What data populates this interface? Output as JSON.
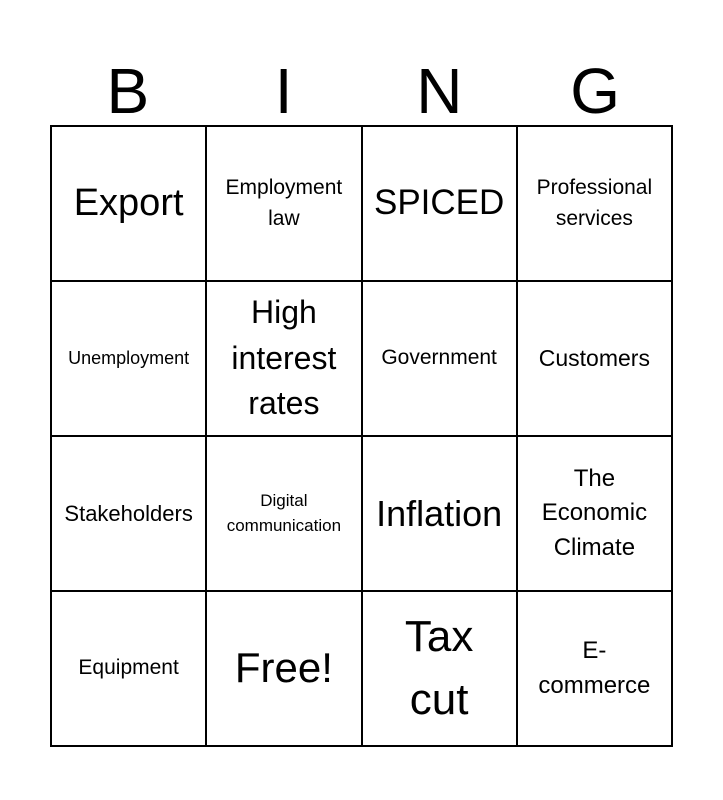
{
  "header": {
    "letters": [
      "B",
      "I",
      "N",
      "G"
    ]
  },
  "grid": {
    "cells": [
      "Export",
      "Employment law",
      "SPICED",
      "Professional services",
      "Unemployment",
      "High interest rates",
      "Government",
      "Customers",
      "Stakeholders",
      "Digital communication",
      "Inflation",
      "The Economic Climate",
      "Equipment",
      "Free!",
      "Tax cut",
      "E-commerce"
    ]
  },
  "colors": {
    "background": "#ffffff",
    "text": "#000000",
    "grid_line": "#000000"
  }
}
